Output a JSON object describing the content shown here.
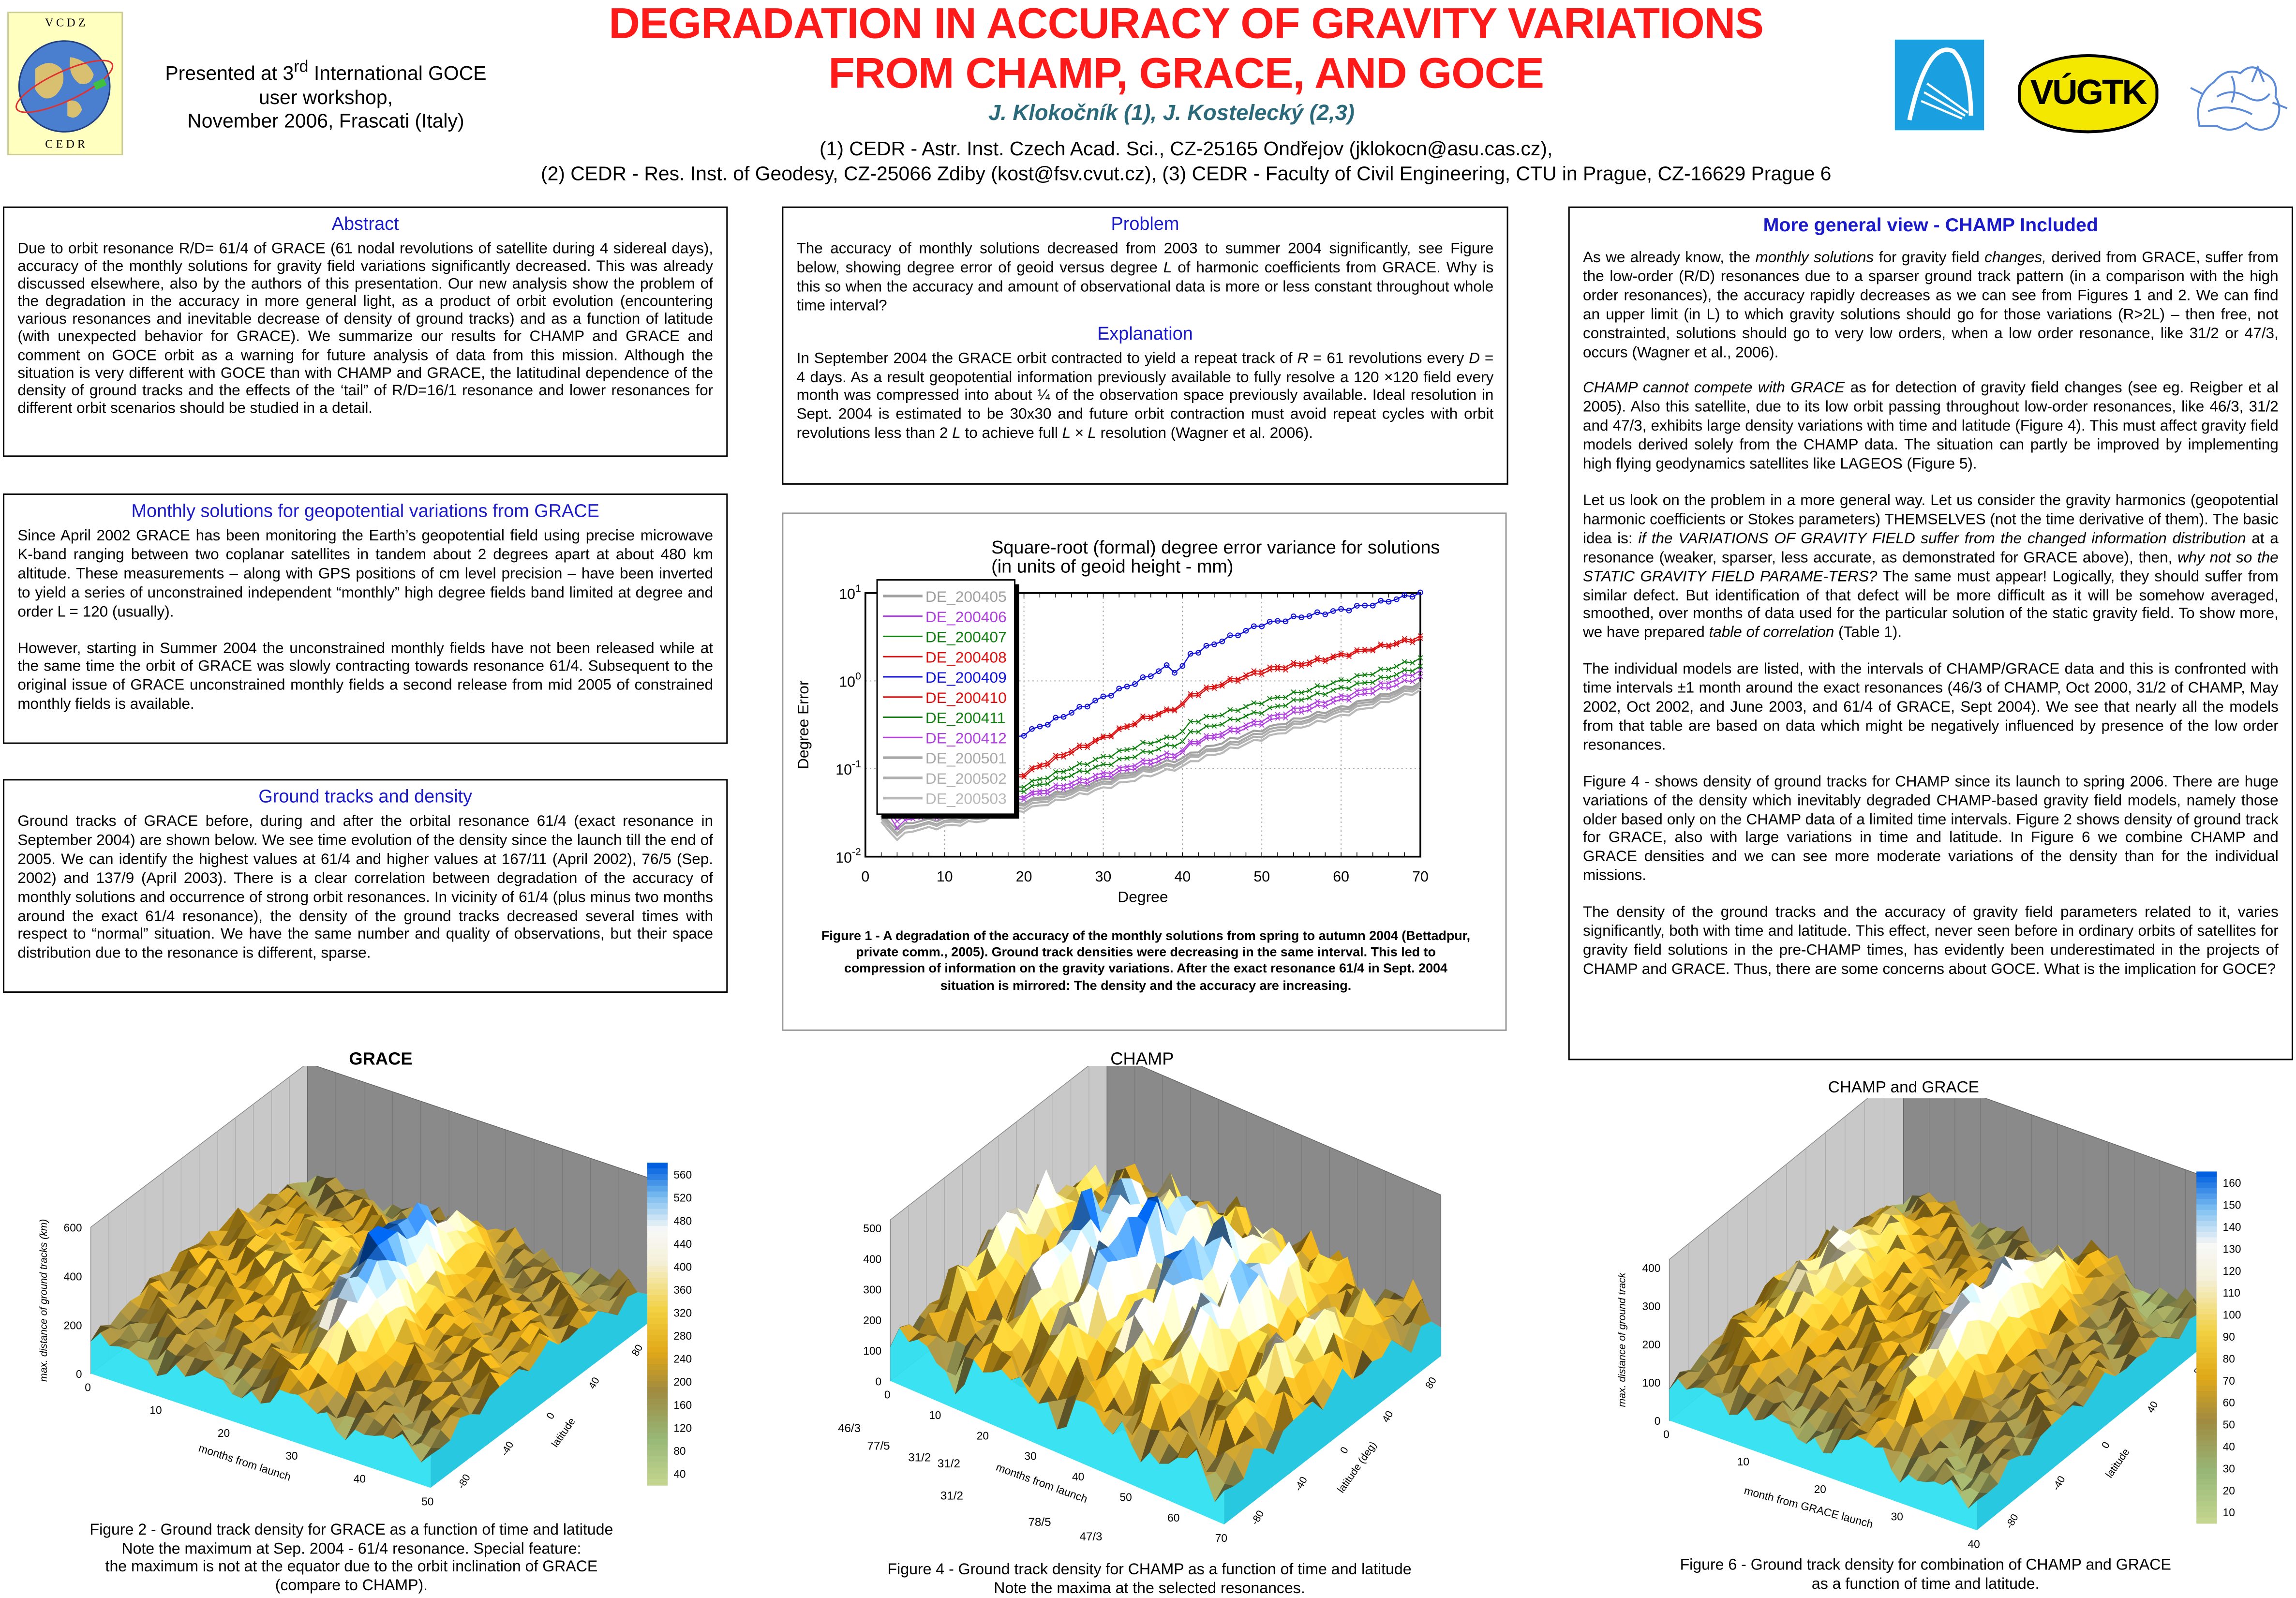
{
  "header": {
    "title_line1": "DEGRADATION IN ACCURACY OF GRAVITY VARIATIONS",
    "title_line2": "FROM CHAMP, GRACE, AND GOCE",
    "authors": "J. Klokočník (1),  J. Kostelecký (2,3)",
    "affiliation_line1": "(1) CEDR - Astr. Inst. Czech Acad. Sci., CZ-25165 Ondřejov (jklokocn@asu.cas.cz),",
    "affiliation_line2": "(2) CEDR - Res. Inst. of Geodesy, CZ-25066 Zdiby (kost@fsv.cvut.cz), (3) CEDR - Faculty of Civil Engineering, CTU in Prague, CZ-16629 Prague 6",
    "presented_pre": "Presented at 3",
    "presented_sup": "rd",
    "presented_post": " International GOCE",
    "presented_line2": "user workshop,",
    "presented_line3": "November 2006, Frascati (Italy)",
    "logo_left_top": "V C D Z",
    "logo_left_bottom": "C E D R",
    "logo_vugtk": "VÚGTK"
  },
  "abstract": {
    "heading": "Abstract",
    "text": "Due to orbit resonance R/D= 61/4 of GRACE (61 nodal revolutions of satellite during 4 sidereal days), accuracy of the monthly solutions for gravity field variations significantly decreased. This was already discussed elsewhere, also by the authors of this presentation. Our new analysis show the problem of the degradation in the accuracy in more general light, as a product of orbit evolution (encountering various resonances and inevitable decrease of density of ground tracks) and as a function of latitude (with unexpected behavior for GRACE). We summarize our results for CHAMP and GRACE and comment on GOCE orbit as a warning for future analysis of data from this mission. Although the situation is very different with GOCE than with CHAMP and GRACE, the latitudinal dependence of the density of ground tracks and the effects of the ‘tail” of R/D=16/1  resonance and lower resonances for different orbit scenarios  should be studied in a detail."
  },
  "monthly": {
    "heading": "Monthly solutions for geopotential variations from GRACE",
    "p1": "Since April 2002 GRACE has been monitoring the Earth’s geopotential field using precise microwave K-band ranging between two coplanar satellites in tandem about 2 degrees apart at about 480 km altitude. These measurements – along with GPS positions of cm level precision – have been inverted to yield a series of unconstrained independent “monthly” high degree fields band limited at degree and order L = 120 (usually).",
    "p2": "However, starting in Summer 2004 the unconstrained monthly fields have not been released while at the same time the orbit of GRACE was slowly contracting towards resonance 61/4. Subsequent to the original issue of GRACE unconstrained monthly fields a second release from mid 2005 of constrained monthly fields is available."
  },
  "ground": {
    "heading": "Ground tracks and density",
    "text": "Ground tracks of GRACE before, during and after the orbital resonance 61/4 (exact resonance in September 2004) are shown below. We see time evolution of the density since the launch till the end of 2005. We can identify the highest values at 61/4 and higher values at 167/11 (April 2002), 76/5 (Sep. 2002) and 137/9 (April 2003). There is a clear correlation between degradation of the accuracy of monthly solutions and occurrence of strong orbit resonances. In vicinity of 61/4 (plus minus two months around the exact 61/4 resonance), the density of the ground tracks decreased several times with respect to “normal” situation. We have the same number and quality of observations, but their space distribution due to the resonance is different, sparse."
  },
  "problem": {
    "heading": "Problem",
    "text": [
      [
        "The accuracy of monthly solutions decreased from 2003 to summer 2004 significantly, see Figure below, showing degree error of geoid versus degree ",
        0
      ],
      [
        "L",
        1
      ],
      [
        " of harmonic coefficients from GRACE. Why is this so when the accuracy and amount of observational data is more or less constant throughout whole time interval?",
        0
      ]
    ],
    "heading2": "Explanation",
    "text2": [
      [
        "In September 2004 the GRACE orbit contracted to yield a repeat track of ",
        0
      ],
      [
        "R",
        1
      ],
      [
        " = 61 revolutions every ",
        0
      ],
      [
        "D",
        1
      ],
      [
        " = 4 days. As a result geopotential information previously available to fully resolve a 120 ×120 field every month was compressed into about ¼ of the observation space previously available. Ideal resolution in Sept. 2004 is estimated to be 30x30 and future orbit contraction must avoid repeat cycles with orbit revolutions less than 2 ",
        0
      ],
      [
        "L",
        1
      ],
      [
        " to achieve full ",
        0
      ],
      [
        "L × L",
        1
      ],
      [
        " resolution (Wagner et al. 2006).",
        0
      ]
    ]
  },
  "figure1": {
    "caption": "Figure 1 - A degradation of the accuracy of the monthly solutions from spring to autumn 2004 (Bettadpur, private comm., 2005). Ground track densities were decreasing in the same interval. This led to compression of information on the gravity variations. After the exact resonance 61/4 in Sept. 2004 situation is mirrored: The density and the accuracy are increasing."
  },
  "chart_data": {
    "type": "line",
    "title": "Square-root (formal) degree error variance for solutions",
    "subtitle": "(in units of geoid height - mm)",
    "xlabel": "Degree",
    "ylabel": "Degree Error",
    "xlim": [
      0,
      70
    ],
    "ylim": [
      0.01,
      10
    ],
    "yscale": "log",
    "xticks": [
      "0",
      "10",
      "20",
      "30",
      "40",
      "50",
      "60",
      "70"
    ],
    "yticks": [
      {
        "base": "10",
        "exp": "1",
        "v": 10
      },
      {
        "base": "10",
        "exp": "0",
        "v": 1
      },
      {
        "base": "10",
        "exp": "-1",
        "v": 0.1
      },
      {
        "base": "10",
        "exp": "-2",
        "v": 0.01
      }
    ],
    "grid": true,
    "legend_position": "top-left",
    "x": [
      2,
      4,
      6,
      8,
      10,
      15,
      20,
      25,
      30,
      35,
      38,
      39,
      40,
      41,
      45,
      50,
      55,
      60,
      65,
      70
    ],
    "series": [
      {
        "name": "DE_200405",
        "color": "#a0a0a0",
        "marker": "none",
        "values": [
          0.03,
          0.021,
          0.025,
          0.026,
          0.027,
          0.032,
          0.042,
          0.055,
          0.075,
          0.1,
          0.12,
          0.125,
          0.13,
          0.15,
          0.2,
          0.28,
          0.38,
          0.5,
          0.68,
          0.95
        ]
      },
      {
        "name": "DE_200406",
        "color": "#b040e0",
        "marker": "x",
        "values": [
          0.042,
          0.026,
          0.03,
          0.03,
          0.031,
          0.037,
          0.05,
          0.066,
          0.088,
          0.12,
          0.145,
          0.15,
          0.16,
          0.2,
          0.26,
          0.36,
          0.5,
          0.66,
          0.9,
          1.3
        ]
      },
      {
        "name": "DE_200407",
        "color": "#108010",
        "marker": "x",
        "values": [
          0.05,
          0.034,
          0.033,
          0.033,
          0.035,
          0.045,
          0.065,
          0.095,
          0.135,
          0.19,
          0.22,
          0.24,
          0.26,
          0.34,
          0.42,
          0.58,
          0.75,
          1.0,
          1.3,
          1.8
        ]
      },
      {
        "name": "DE_200408",
        "color": "#e01010",
        "marker": "x",
        "values": [
          0.062,
          0.05,
          0.046,
          0.04,
          0.042,
          0.06,
          0.09,
          0.15,
          0.23,
          0.38,
          0.46,
          0.5,
          0.55,
          0.7,
          0.95,
          1.35,
          1.6,
          2.0,
          2.5,
          3.2
        ]
      },
      {
        "name": "DE_200409",
        "color": "#1010e0",
        "marker": "o",
        "values": [
          0.09,
          0.1,
          0.08,
          0.065,
          0.08,
          0.15,
          0.25,
          0.4,
          0.65,
          1.05,
          1.45,
          1.3,
          1.45,
          2.0,
          2.9,
          4.4,
          5.4,
          6.4,
          7.8,
          10
        ]
      },
      {
        "name": "DE_200410",
        "color": "#e01010",
        "marker": "^",
        "values": [
          0.055,
          0.045,
          0.042,
          0.038,
          0.04,
          0.058,
          0.085,
          0.14,
          0.22,
          0.36,
          0.44,
          0.48,
          0.52,
          0.66,
          0.9,
          1.25,
          1.5,
          1.9,
          2.4,
          3.0
        ]
      },
      {
        "name": "DE_200411",
        "color": "#108010",
        "marker": "d",
        "values": [
          0.045,
          0.03,
          0.03,
          0.031,
          0.033,
          0.042,
          0.058,
          0.08,
          0.11,
          0.15,
          0.18,
          0.19,
          0.2,
          0.26,
          0.33,
          0.45,
          0.62,
          0.82,
          1.05,
          1.45
        ]
      },
      {
        "name": "DE_200412",
        "color": "#b040e0",
        "marker": "d",
        "values": [
          0.04,
          0.022,
          0.028,
          0.028,
          0.03,
          0.035,
          0.047,
          0.06,
          0.08,
          0.11,
          0.13,
          0.14,
          0.15,
          0.19,
          0.24,
          0.33,
          0.45,
          0.6,
          0.8,
          1.1
        ]
      },
      {
        "name": "DE_200501",
        "color": "#a8a8a8",
        "marker": "none",
        "values": [
          0.028,
          0.019,
          0.023,
          0.024,
          0.025,
          0.03,
          0.04,
          0.052,
          0.07,
          0.095,
          0.11,
          0.115,
          0.12,
          0.14,
          0.18,
          0.26,
          0.35,
          0.47,
          0.64,
          0.9
        ]
      },
      {
        "name": "DE_200502",
        "color": "#b0b0b0",
        "marker": "none",
        "values": [
          0.026,
          0.018,
          0.022,
          0.023,
          0.024,
          0.028,
          0.037,
          0.049,
          0.066,
          0.09,
          0.105,
          0.11,
          0.115,
          0.135,
          0.17,
          0.24,
          0.33,
          0.44,
          0.6,
          0.85
        ]
      },
      {
        "name": "DE_200503",
        "color": "#b8b8b8",
        "marker": "none",
        "values": [
          0.024,
          0.016,
          0.02,
          0.021,
          0.022,
          0.026,
          0.034,
          0.045,
          0.06,
          0.08,
          0.095,
          0.1,
          0.105,
          0.12,
          0.155,
          0.22,
          0.3,
          0.4,
          0.55,
          0.78
        ]
      }
    ]
  },
  "right": {
    "heading": "More general view  -  CHAMP Included",
    "paragraphs": [
      [
        [
          "As we already know, the ",
          0
        ],
        [
          "monthly solutions",
          1
        ],
        [
          " for gravity field ",
          0
        ],
        [
          "changes,",
          1
        ],
        [
          " derived from GRACE, suffer from the low-order (R/D)  resonances due to a sparser ground track pattern (in a comparison with the high order resonances), the accuracy rapidly decreases as we can see from Figures 1 and 2. We can find an upper limit (in L)  to which gravity solutions should go for those variations (R>2L) – then free, not constrainted, solutions should go to very low orders, when a low order resonance, like  31/2 or 47/3, occurs (Wagner et al., 2006).",
          0
        ]
      ],
      [
        [
          "CHAMP cannot compete with GRACE",
          1
        ],
        [
          " as for detection of gravity field changes (see eg. Reigber et al 2005). Also this satellite, due to its low orbit passing throughout low-order resonances, like 46/3, 31/2 and 47/3, exhibits large density variations with time and latitude (Figure 4). This must affect gravity field models derived solely from the CHAMP data. The situation can partly be improved by implementing high flying geodynamics satellites like LAGEOS (Figure 5).",
          0
        ]
      ],
      [
        [
          "Let us look on the problem in a more general way. Let us consider the gravity harmonics (geopotential harmonic coefficients or Stokes parameters) THEMSELVES (not the time derivative of them). The basic idea is: ",
          0
        ],
        [
          "if the VARIATIONS OF GRAVITY FIELD suffer from the changed information distribution",
          1
        ],
        [
          " at a resonance (weaker, sparser, less accurate, as demonstrated for GRACE above),  then, ",
          0
        ],
        [
          "why not so the STATIC GRAVITY FIELD PARAME-TERS?",
          1
        ],
        [
          " The same must appear! Logically, they should suffer from similar defect. But identification of that defect will be more difficult as it will be somehow averaged, smoothed, over months of data used for  the particular solution of the static gravity field. To show more, we have prepared  ",
          0
        ],
        [
          "table of correlation",
          1
        ],
        [
          " (Table 1).",
          0
        ]
      ],
      [
        [
          "The individual models are listed, with the intervals of CHAMP/GRACE data and this is confronted with time intervals  ±1 month around the exact resonances  (46/3 of CHAMP, Oct 2000,  31/2 of CHAMP, May 2002, Oct 2002, and June 2003, and 61/4 of GRACE, Sept 2004). We see that nearly all the models from that table are based on data which might be negatively influenced by presence of the low order resonances.",
          0
        ]
      ],
      [
        [
          "Figure 4 - shows density of ground tracks for CHAMP since its launch to spring 2006. There are huge variations of the density which inevitably degraded CHAMP-based gravity field models, namely those older based only on the CHAMP data of a limited time intervals. Figure 2 shows density of ground track for GRACE, also with large variations in time and latitude. In Figure 6 we combine CHAMP and GRACE densities and we can see more moderate variations of the density than for the individual missions.",
          0
        ]
      ],
      [
        [
          "The density of the ground tracks and the accuracy of gravity field parameters related to it, varies significantly, both with time and latitude. This effect, never seen before in ordinary orbits of satellites for gravity field solutions in the pre-CHAMP times, has evidently been underestimated in the projects of CHAMP and GRACE. Thus, there are some concerns about GOCE. What is the implication for GOCE?",
          0
        ]
      ]
    ]
  },
  "plots": {
    "grace": {
      "label": "GRACE",
      "zlabel": "max. distance of ground tracks (km)",
      "zticks": [
        "0",
        "200",
        "400",
        "600"
      ],
      "xticks": [
        "0",
        "10",
        "20",
        "30",
        "40",
        "50"
      ],
      "xlabel": "months from launch",
      "yticks": [
        "-80",
        "-40",
        "0",
        "40",
        "80"
      ],
      "ylabel": "latitude",
      "colorbar": [
        "560",
        "520",
        "480",
        "440",
        "400",
        "360",
        "320",
        "280",
        "240",
        "200",
        "160",
        "120",
        "80",
        "40"
      ],
      "caption": [
        "Figure 2 - Ground track density for GRACE as a function of time and latitude",
        "Note the maximum at Sep. 2004 - 61/4 resonance. Special feature:",
        "the maximum is not at the equator due to the orbit inclination of GRACE",
        "(compare to CHAMP)."
      ]
    },
    "champ": {
      "label": "CHAMP",
      "zticks": [
        "0",
        "100",
        "200",
        "300",
        "400",
        "500"
      ],
      "xticks": [
        "0",
        "10",
        "20",
        "30",
        "40",
        "50",
        "60",
        "70"
      ],
      "xlabel": "months from launch",
      "yticks": [
        "-80",
        "-40",
        "0",
        "40",
        "80"
      ],
      "ylabel": "latitude (deg)",
      "resonances": [
        "46/3",
        "77/5",
        "31/2",
        "31/2",
        "31/2",
        "78/5",
        "47/3"
      ],
      "caption": [
        "Figure 4 - Ground track density for CHAMP as a function of time and latitude",
        "Note the maxima at the selected  resonances."
      ]
    },
    "combined": {
      "label": "CHAMP and GRACE",
      "zlabel": "max. distance of ground track",
      "zticks": [
        "0",
        "100",
        "200",
        "300",
        "400"
      ],
      "xticks": [
        "0",
        "10",
        "20",
        "30",
        "40"
      ],
      "xlabel": "month from GRACE launch",
      "yticks": [
        "-80",
        "-40",
        "0",
        "40",
        "80"
      ],
      "ylabel": "latitude",
      "colorbar": [
        "160",
        "150",
        "140",
        "130",
        "120",
        "110",
        "100",
        "90",
        "80",
        "70",
        "60",
        "50",
        "40",
        "30",
        "20",
        "10"
      ],
      "caption": [
        "Figure 6 - Ground track density for combination of CHAMP and GRACE",
        "as a function of time and latitude."
      ]
    }
  },
  "colors": {
    "title": "#ff1a1a",
    "heading": "#1a1acc",
    "authors": "#2a6a7a",
    "cyan_side": "#30e0f0"
  }
}
